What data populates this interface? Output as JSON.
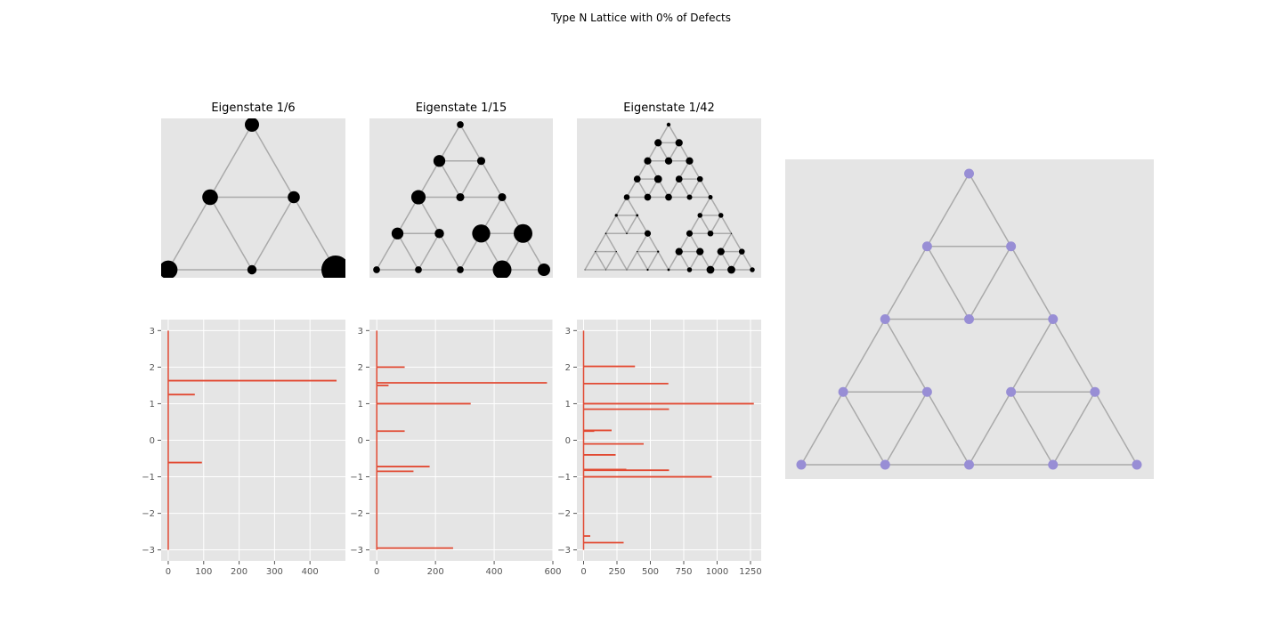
{
  "figure": {
    "title": "Type N Lattice with 0% of Defects"
  },
  "colors": {
    "panel_bg": "#e5e5e5",
    "grid": "#ffffff",
    "edge": "#aaaaaa",
    "node": "#000000",
    "spectrum": "#e24a33",
    "lattice_node": "#988ed5",
    "tick_text": "#555555"
  },
  "chart_data": [
    {
      "type": "network",
      "title": "Eigenstate 1/6",
      "levels": 2,
      "amplitudes": [
        1.0,
        1.1,
        0.85,
        1.3,
        0.65,
        2.0
      ]
    },
    {
      "type": "network",
      "title": "Eigenstate 1/15",
      "levels": 3,
      "amplitudes": [
        0.55,
        0.95,
        0.65,
        1.15,
        0.65,
        0.65,
        0.95,
        0.75,
        1.45,
        1.5,
        0.55,
        0.55,
        0.55,
        1.5,
        1.0
      ]
    },
    {
      "type": "network",
      "title": "Eigenstate 1/42",
      "levels": 4,
      "amplitudes": [
        0.4,
        0.75,
        0.75,
        0.75,
        0.75,
        0.75,
        0.7,
        0.8,
        0.7,
        0.6,
        0.6,
        0.7,
        0.7,
        0.55,
        0.45,
        0.3,
        0.25,
        0.5,
        0.5,
        0.15,
        0.15,
        0.65,
        0.65,
        0.6,
        0.12,
        0.12,
        0.12,
        0.12,
        0.2,
        0.75,
        0.75,
        0.75,
        0.6,
        0.1,
        0.1,
        0.1,
        0.2,
        0.25,
        0.5,
        0.8,
        0.8,
        0.5
      ]
    },
    {
      "type": "spectrum",
      "x_ticks": [
        0,
        100,
        200,
        300,
        400
      ],
      "xlim": [
        -20,
        500
      ],
      "y_ticks": [
        3,
        2,
        1,
        0,
        -1,
        -2,
        -3
      ],
      "ylim": [
        -3.3,
        3.3
      ],
      "baseline_x": 0,
      "segments": [
        {
          "y": 1.63,
          "x": 475
        },
        {
          "y": 1.25,
          "x": 75
        },
        {
          "y": -0.61,
          "x": 95
        }
      ]
    },
    {
      "type": "spectrum",
      "x_ticks": [
        0,
        200,
        400,
        600
      ],
      "xlim": [
        -25,
        600
      ],
      "y_ticks": [
        3,
        2,
        1,
        0,
        -1,
        -2,
        -3
      ],
      "ylim": [
        -3.3,
        3.3
      ],
      "baseline_x": 0,
      "segments": [
        {
          "y": 2.0,
          "x": 95
        },
        {
          "y": 1.57,
          "x": 580
        },
        {
          "y": 1.5,
          "x": 40
        },
        {
          "y": 1.0,
          "x": 320
        },
        {
          "y": 0.25,
          "x": 95
        },
        {
          "y": -0.72,
          "x": 180
        },
        {
          "y": -0.85,
          "x": 125
        },
        {
          "y": -2.95,
          "x": 260
        }
      ]
    },
    {
      "type": "spectrum",
      "x_ticks": [
        0,
        250,
        500,
        750,
        1000,
        1250
      ],
      "xlim": [
        -50,
        1330
      ],
      "y_ticks": [
        3,
        2,
        1,
        0,
        -1,
        -2,
        -3
      ],
      "ylim": [
        -3.3,
        3.3
      ],
      "baseline_x": 0,
      "segments": [
        {
          "y": 2.02,
          "x": 385
        },
        {
          "y": 1.55,
          "x": 635
        },
        {
          "y": 1.0,
          "x": 1275
        },
        {
          "y": 0.85,
          "x": 640
        },
        {
          "y": 0.27,
          "x": 210
        },
        {
          "y": 0.25,
          "x": 80
        },
        {
          "y": -0.1,
          "x": 450
        },
        {
          "y": -0.4,
          "x": 240
        },
        {
          "y": -0.8,
          "x": 320
        },
        {
          "y": -0.82,
          "x": 640
        },
        {
          "y": -1.0,
          "x": 960
        },
        {
          "y": -2.62,
          "x": 50
        },
        {
          "y": -2.8,
          "x": 300
        }
      ]
    },
    {
      "type": "network",
      "title": "",
      "levels": 3,
      "uniform_nodes": true
    }
  ]
}
